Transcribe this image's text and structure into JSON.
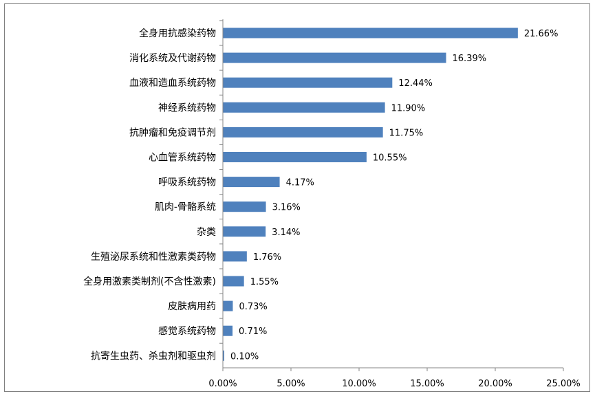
{
  "chart_data": {
    "type": "bar",
    "orientation": "horizontal",
    "categories": [
      "全身用抗感染药物",
      "消化系统及代谢药物",
      "血液和造血系统药物",
      "神经系统药物",
      "抗肿瘤和免疫调节剂",
      "心血管系统药物",
      "呼吸系统药物",
      "肌肉-骨骼系统",
      "杂类",
      "生殖泌尿系统和性激素类药物",
      "全身用激素类制剂(不含性激素)",
      "皮肤病用药",
      "感觉系统药物",
      "抗寄生虫药、杀虫剂和驱虫剂"
    ],
    "values": [
      21.66,
      16.39,
      12.44,
      11.9,
      11.75,
      10.55,
      4.17,
      3.16,
      3.14,
      1.76,
      1.55,
      0.73,
      0.71,
      0.1
    ],
    "value_labels": [
      "21.66%",
      "16.39%",
      "12.44%",
      "11.90%",
      "11.75%",
      "10.55%",
      "4.17%",
      "3.16%",
      "3.14%",
      "1.76%",
      "1.55%",
      "0.73%",
      "0.71%",
      "0.10%"
    ],
    "x_ticks": [
      0,
      5,
      10,
      15,
      20,
      25
    ],
    "x_tick_labels": [
      "0.00%",
      "5.00%",
      "10.00%",
      "15.00%",
      "20.00%",
      "25.00%"
    ],
    "xlim": [
      0,
      25
    ],
    "title": "",
    "xlabel": "",
    "ylabel": "",
    "grid": false,
    "legend": "none",
    "bar_color": "#4f81bd",
    "axis_color": "#868686"
  }
}
